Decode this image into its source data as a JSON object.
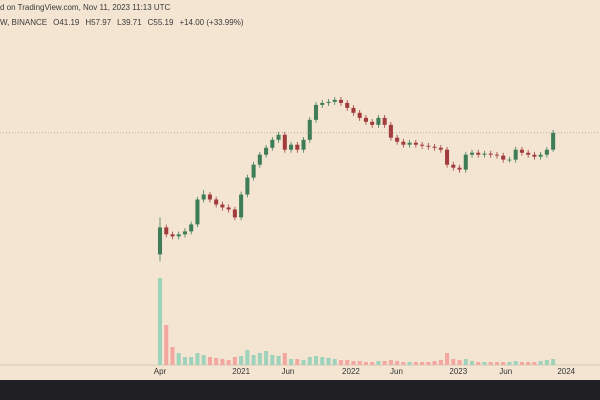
{
  "header": {
    "published": "d on TradingView.com, Nov 11, 2023 11:13 UTC",
    "legend": [
      "W, BINANCE",
      "O41.19",
      "H57.97",
      "L39.71",
      "C55.19",
      "+14.00 (+33.99%)"
    ]
  },
  "chart_data": {
    "type": "candlestick",
    "log_scale": true,
    "ylim": [
      1,
      460
    ],
    "xlim": [
      -25.64,
      70.51
    ],
    "xticks": [
      {
        "value": 0,
        "label": "Apr"
      },
      {
        "value": 13,
        "label": "2021"
      },
      {
        "value": 20.5,
        "label": "Jun"
      },
      {
        "value": 30.6,
        "label": "2022"
      },
      {
        "value": 37.9,
        "label": "Jun"
      },
      {
        "value": 47.8,
        "label": "2023"
      },
      {
        "value": 55.4,
        "label": "Jun"
      },
      {
        "value": 65.1,
        "label": "2024"
      }
    ],
    "up_color": "#3f7d58",
    "down_color": "#a23c3c",
    "up_volume_color": "#9fd2bb",
    "down_volume_color": "#f2a7a0",
    "open": [
      6.77,
      10.77,
      9.55,
      9.23,
      9.55,
      10.05,
      11.34,
      17.44,
      19.0,
      17.44,
      16.0,
      15.2,
      14.68,
      12.8,
      19.0,
      25.45,
      31.8,
      37.8,
      42.6,
      48.9,
      53.3,
      41.2,
      44.9,
      41.2,
      48.9,
      69.0,
      89.3,
      92.4,
      94.1,
      97.4,
      92.4,
      84.8,
      77.9,
      71.4,
      66.7,
      63.3,
      71.4,
      63.3,
      50.7,
      47.3,
      44.9,
      46.5,
      44.9,
      44.1,
      43.4,
      42.6,
      41.2,
      31.8,
      30.2,
      29.2,
      37.8,
      39.1,
      37.8,
      38.5,
      37.8,
      37.2,
      34.7,
      34.7,
      41.2,
      39.1,
      37.8,
      36.5,
      37.8,
      41.19
    ],
    "high": [
      12.8,
      11.3,
      10.0,
      10.0,
      10.6,
      11.9,
      18.3,
      20.5,
      19.9,
      18.3,
      16.8,
      16.0,
      15.4,
      20.0,
      26.7,
      33.4,
      39.7,
      44.7,
      51.3,
      56.0,
      56.0,
      47.1,
      47.1,
      51.3,
      72.5,
      93.8,
      97.0,
      98.8,
      102.3,
      102.3,
      97.0,
      89.0,
      81.8,
      75.0,
      70.0,
      75.0,
      75.0,
      66.5,
      53.2,
      49.7,
      48.8,
      48.8,
      47.1,
      46.3,
      45.6,
      44.7,
      43.3,
      33.4,
      31.7,
      39.7,
      41.1,
      41.1,
      40.4,
      40.4,
      39.7,
      39.1,
      36.4,
      43.3,
      43.3,
      41.1,
      39.7,
      39.7,
      43.2,
      57.97
    ],
    "low": [
      6.0,
      9.07,
      8.77,
      8.77,
      9.07,
      9.55,
      10.8,
      16.6,
      16.6,
      15.2,
      14.4,
      13.9,
      12.2,
      12.2,
      18.1,
      24.2,
      30.2,
      35.9,
      40.5,
      46.5,
      39.1,
      39.1,
      39.1,
      39.1,
      46.5,
      65.6,
      84.8,
      87.8,
      89.4,
      87.8,
      80.6,
      74.0,
      67.8,
      63.4,
      60.1,
      60.1,
      60.1,
      48.2,
      44.9,
      42.7,
      42.7,
      42.7,
      41.9,
      41.2,
      40.5,
      39.1,
      30.2,
      28.7,
      27.7,
      27.7,
      35.9,
      35.9,
      35.9,
      35.9,
      35.3,
      33.0,
      33.0,
      33.0,
      37.1,
      35.9,
      34.7,
      34.7,
      35.9,
      39.71
    ],
    "close": [
      10.77,
      9.55,
      9.23,
      9.55,
      10.05,
      11.34,
      17.44,
      19.0,
      17.44,
      16.0,
      15.2,
      14.68,
      12.8,
      19.0,
      25.45,
      31.8,
      37.8,
      42.6,
      48.9,
      53.3,
      41.2,
      44.9,
      41.2,
      48.9,
      69.0,
      89.3,
      92.4,
      94.1,
      97.4,
      92.4,
      84.8,
      77.9,
      71.4,
      66.7,
      63.3,
      71.4,
      63.3,
      50.7,
      47.3,
      44.9,
      46.5,
      44.9,
      44.1,
      43.4,
      42.6,
      41.2,
      31.8,
      30.2,
      29.2,
      37.8,
      39.1,
      37.8,
      38.5,
      37.8,
      37.2,
      34.7,
      34.7,
      41.2,
      39.1,
      37.8,
      36.5,
      37.8,
      41.19,
      55.19
    ],
    "volume": [
      87,
      40,
      18,
      12,
      8,
      8,
      12,
      10,
      8,
      7,
      6,
      5,
      8,
      9,
      15,
      10,
      12,
      14,
      10,
      9,
      12,
      6,
      6,
      5,
      8,
      9,
      8,
      7,
      6,
      5,
      5,
      4,
      4,
      3,
      3,
      4,
      4,
      5,
      4,
      3,
      3,
      3,
      3,
      3,
      4,
      5,
      12,
      6,
      5,
      6,
      4,
      3,
      3,
      3,
      3,
      3,
      3,
      4,
      3,
      3,
      3,
      4,
      5,
      6
    ],
    "volume_lim": [
      0,
      100
    ]
  }
}
